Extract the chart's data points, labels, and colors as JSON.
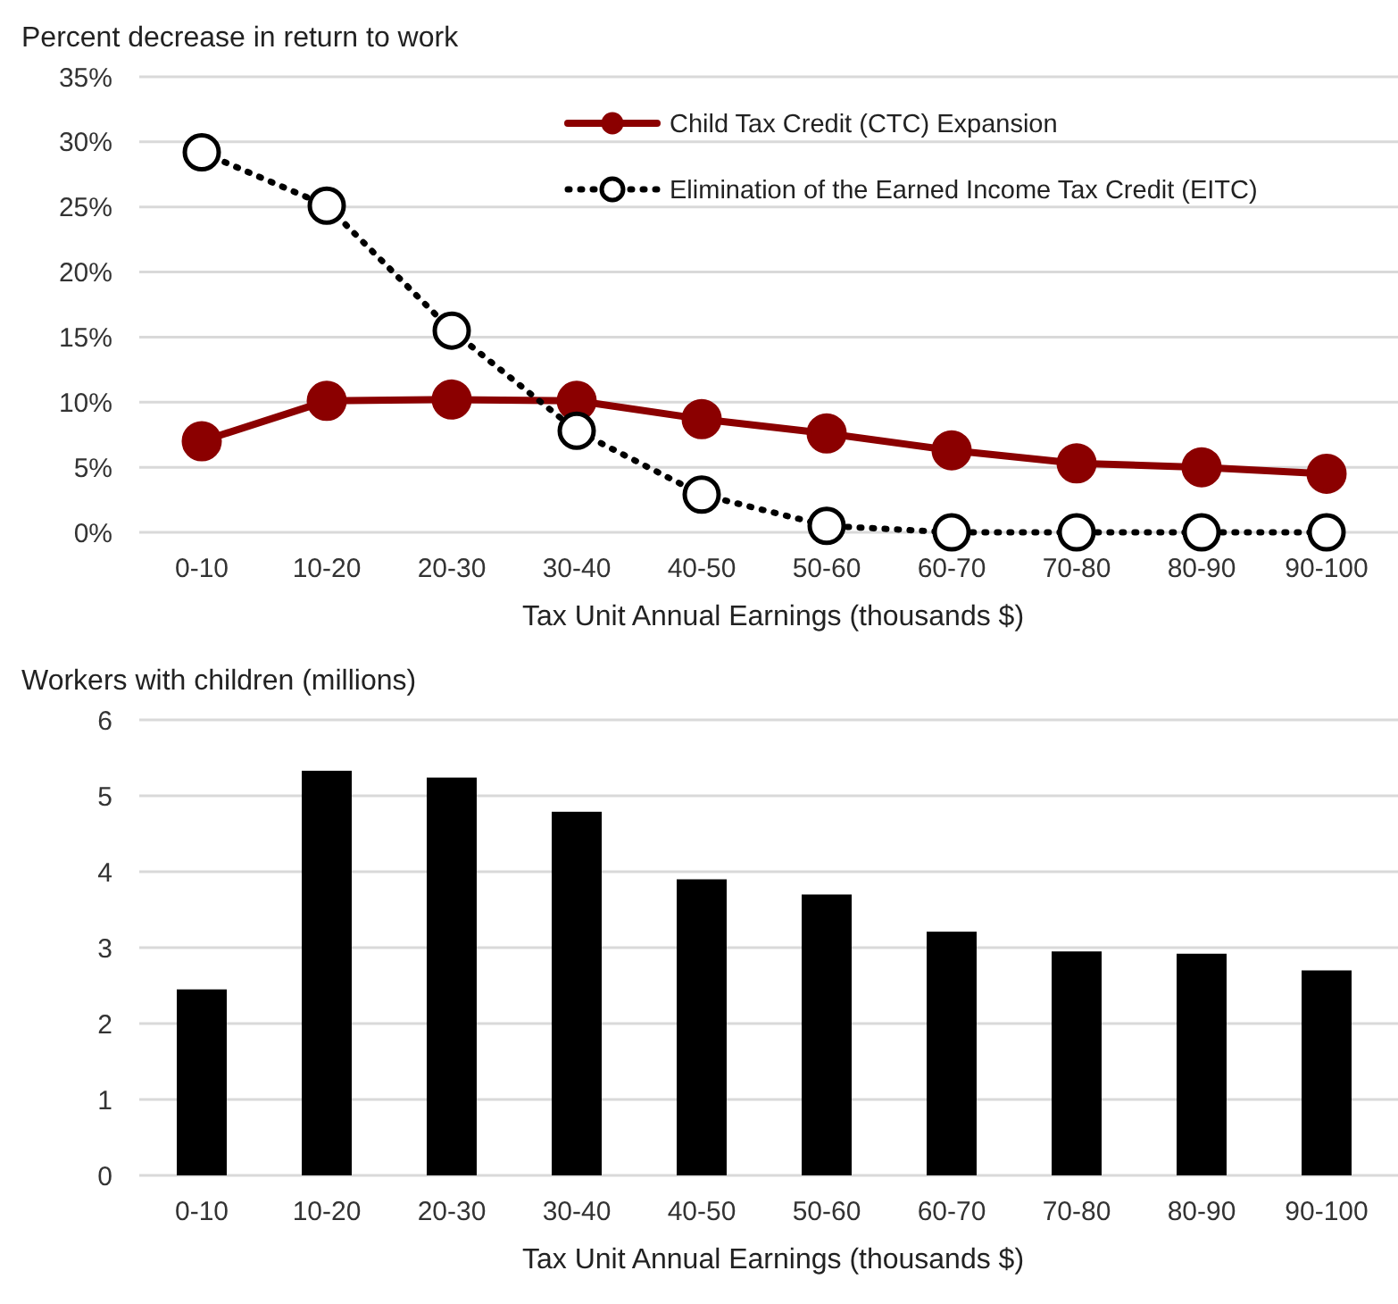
{
  "chart_data": [
    {
      "type": "line",
      "ylabel": "Percent decrease in return to work",
      "xlabel": "Tax Unit Annual Earnings (thousands $)",
      "categories": [
        "0-10",
        "10-20",
        "20-30",
        "30-40",
        "40-50",
        "50-60",
        "60-70",
        "70-80",
        "80-90",
        "90-100"
      ],
      "series": [
        {
          "name": "Child Tax Credit (CTC) Expansion",
          "color": "#8b0000",
          "line_style": "solid",
          "marker": "circle",
          "values": [
            7.0,
            10.1,
            10.2,
            10.1,
            8.7,
            7.6,
            6.3,
            5.3,
            5.0,
            4.5
          ]
        },
        {
          "name": "Elimination of the Earned Income Tax Credit (EITC)",
          "color": "#000000",
          "line_style": "dotted",
          "marker": "circle",
          "values": [
            29.2,
            25.1,
            15.5,
            7.8,
            2.9,
            0.5,
            0,
            0,
            0,
            0
          ]
        }
      ],
      "ylim": [
        0,
        35
      ],
      "yticks": [
        {
          "value": 0,
          "label": "0%"
        },
        {
          "value": 5,
          "label": "5%"
        },
        {
          "value": 10,
          "label": "10%"
        },
        {
          "value": 15,
          "label": "15%"
        },
        {
          "value": 20,
          "label": "20%"
        },
        {
          "value": 25,
          "label": "25%"
        },
        {
          "value": 30,
          "label": "30%"
        },
        {
          "value": 35,
          "label": "35%"
        }
      ],
      "grid": "y",
      "legend": "top right"
    },
    {
      "type": "bar",
      "ylabel": "Workers with children (millions)",
      "xlabel": "Tax Unit Annual Earnings (thousands $)",
      "categories": [
        "0-10",
        "10-20",
        "20-30",
        "30-40",
        "40-50",
        "50-60",
        "60-70",
        "70-80",
        "80-90",
        "90-100"
      ],
      "values": [
        2.45,
        5.33,
        5.24,
        4.79,
        3.9,
        3.7,
        3.21,
        2.95,
        2.92,
        2.7
      ],
      "color": "#000000",
      "ylim": [
        0,
        6
      ],
      "yticks": [
        0,
        1,
        2,
        3,
        4,
        5,
        6
      ],
      "grid": "y"
    }
  ]
}
